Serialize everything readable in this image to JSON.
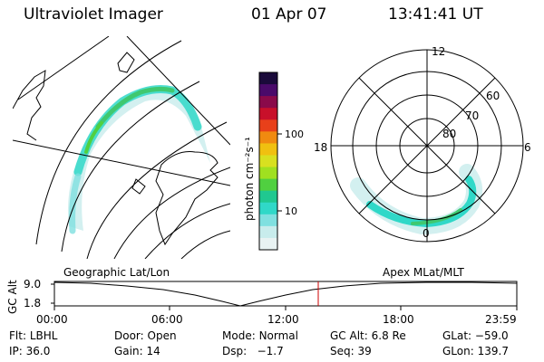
{
  "header": {
    "title": "Ultraviolet Imager",
    "date": "01 Apr 07",
    "time": "13:41:41 UT"
  },
  "colorbar": {
    "unit_label": "photon cm⁻²s⁻¹",
    "ticks": [
      "100",
      "10"
    ],
    "colors": [
      "#1a0a3a",
      "#4a0a6a",
      "#8a0a4a",
      "#c8102a",
      "#e8401a",
      "#f08a10",
      "#f0c010",
      "#d8e020",
      "#a0e020",
      "#50d040",
      "#20c890",
      "#30d8c8",
      "#80e0e0",
      "#c8ecec",
      "#e8f2f2"
    ]
  },
  "polar_plot": {
    "hour_labels": {
      "top": "12",
      "left": "18",
      "right": "6",
      "bottom": "0"
    },
    "lat_labels": [
      "60",
      "70",
      "80"
    ]
  },
  "altitude_strip": {
    "axis_title": "GC Alt",
    "y_ticks": [
      "9.0",
      "1.8"
    ],
    "left_caption": "Geographic Lat/Lon",
    "right_caption": "Apex MLat/MLT",
    "x_ticks": [
      "00:00",
      "06:00",
      "12:00",
      "18:00",
      "23:59"
    ],
    "marker_color": "#cc0000"
  },
  "status": {
    "row1": [
      {
        "label": "Flt:",
        "value": "LBHL"
      },
      {
        "label": "Door:",
        "value": "Open"
      },
      {
        "label": "Mode:",
        "value": "Normal"
      },
      {
        "label": "GC Alt:",
        "value": "6.8 Re"
      },
      {
        "label": "GLat:",
        "value": "−59.0"
      }
    ],
    "row2": [
      {
        "label": "IP:",
        "value": "36.0"
      },
      {
        "label": "Gain:",
        "value": "14"
      },
      {
        "label": "Dsp:",
        "value": "  −1.7"
      },
      {
        "label": "Seq:",
        "value": "39"
      },
      {
        "label": "GLon:",
        "value": "139.7"
      }
    ]
  }
}
